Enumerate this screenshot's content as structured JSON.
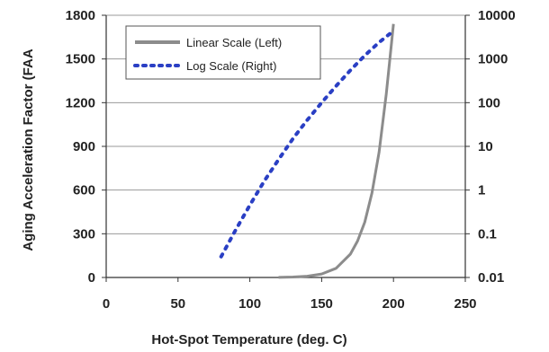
{
  "chart_data": {
    "type": "line",
    "xlabel": "Hot-Spot Temperature (deg. C)",
    "ylabel": "Aging Acceleration Factor (FAA",
    "xlim": [
      0,
      250
    ],
    "ylim": [
      0,
      1800
    ],
    "y2lim": [
      0.01,
      10000
    ],
    "y2scale": "log",
    "x_ticks": [
      "0",
      "50",
      "100",
      "150",
      "200",
      "250"
    ],
    "y_ticks": [
      "0",
      "300",
      "600",
      "900",
      "1200",
      "1500",
      "1800"
    ],
    "y2_ticks": [
      "0.01",
      "0.1",
      "1",
      "10",
      "100",
      "1000",
      "10000"
    ],
    "grid": true,
    "legend_position": "top-left",
    "series": [
      {
        "name": "Linear Scale (Left)",
        "axis": "left",
        "style": "solid",
        "color": "#8c8c8c",
        "x": [
          120,
          130,
          140,
          150,
          160,
          170,
          175,
          180,
          185,
          190,
          195,
          200
        ],
        "y": [
          0.9,
          2.8,
          8.5,
          24,
          63,
          160,
          250,
          380,
          580,
          860,
          1260,
          1740
        ]
      },
      {
        "name": "Log Scale (Right)",
        "axis": "right",
        "style": "dotted",
        "color": "#2a3fc4",
        "x": [
          80,
          90,
          100,
          110,
          120,
          130,
          140,
          150,
          160,
          170,
          180,
          190,
          200
        ],
        "y": [
          0.03,
          0.12,
          0.45,
          1.6,
          5,
          15,
          40,
          100,
          240,
          550,
          1200,
          2400,
          4400
        ]
      }
    ]
  }
}
